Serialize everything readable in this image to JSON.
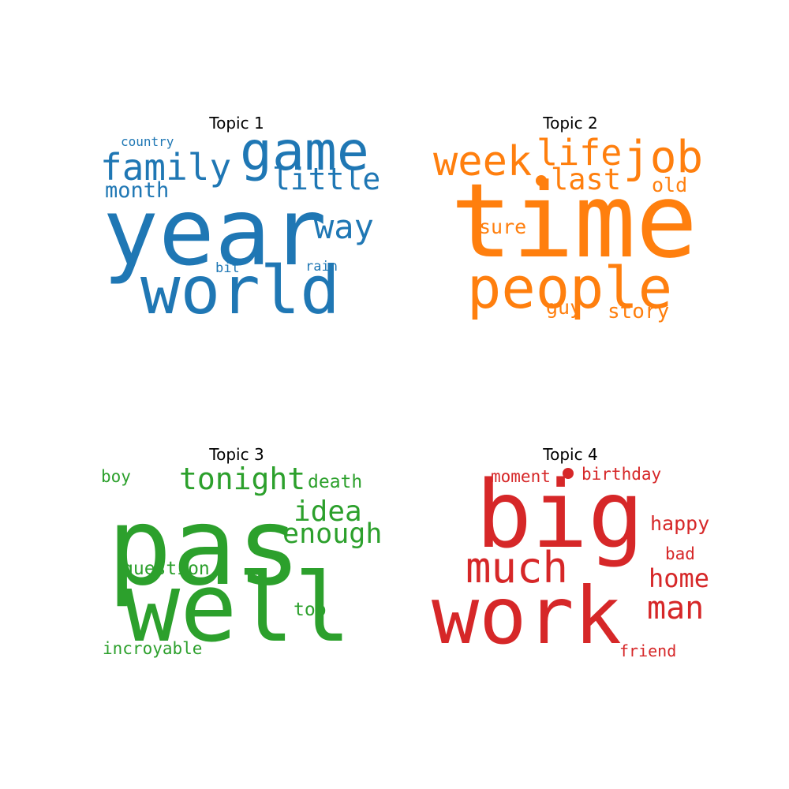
{
  "chart_data": [
    {
      "type": "wordcloud",
      "title": "Topic 1",
      "color": "#1f77b4",
      "words": [
        {
          "text": "year"
        },
        {
          "text": "world"
        },
        {
          "text": "game"
        },
        {
          "text": "family"
        },
        {
          "text": "little"
        },
        {
          "text": "way"
        },
        {
          "text": "month"
        },
        {
          "text": "country"
        },
        {
          "text": "rain"
        },
        {
          "text": "bit"
        }
      ]
    },
    {
      "type": "wordcloud",
      "title": "Topic 2",
      "color": "#ff7f0e",
      "words": [
        {
          "text": "time"
        },
        {
          "text": "people"
        },
        {
          "text": "job"
        },
        {
          "text": "week"
        },
        {
          "text": "life"
        },
        {
          "text": "last"
        },
        {
          "text": "old"
        },
        {
          "text": "sure"
        },
        {
          "text": "story"
        },
        {
          "text": "guy"
        }
      ]
    },
    {
      "type": "wordcloud",
      "title": "Topic 3",
      "color": "#2ca02c",
      "words": [
        {
          "text": "pas"
        },
        {
          "text": "well"
        },
        {
          "text": "tonight"
        },
        {
          "text": "idea"
        },
        {
          "text": "enough"
        },
        {
          "text": "question"
        },
        {
          "text": "death"
        },
        {
          "text": "top"
        },
        {
          "text": "incroyable"
        },
        {
          "text": "boy"
        }
      ]
    },
    {
      "type": "wordcloud",
      "title": "Topic 4",
      "color": "#d62728",
      "words": [
        {
          "text": "big"
        },
        {
          "text": "work"
        },
        {
          "text": "much"
        },
        {
          "text": "man"
        },
        {
          "text": "home"
        },
        {
          "text": "happy"
        },
        {
          "text": "moment"
        },
        {
          "text": "birthday"
        },
        {
          "text": "bad"
        },
        {
          "text": "friend"
        }
      ]
    }
  ]
}
